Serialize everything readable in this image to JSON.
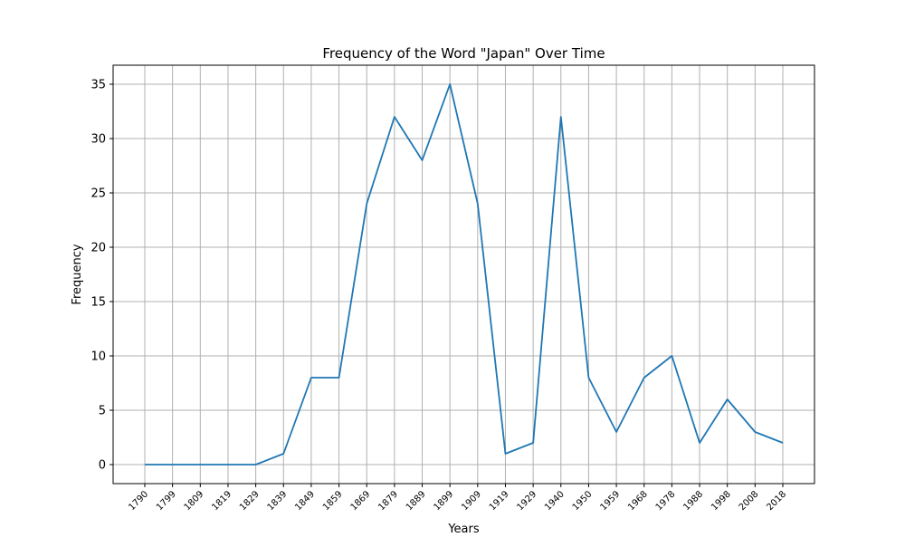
{
  "chart_data": {
    "type": "line",
    "title": "Frequency of the Word \"Japan\" Over Time",
    "xlabel": "Years",
    "ylabel": "Frequency",
    "categories": [
      "1790",
      "1799",
      "1809",
      "1819",
      "1829",
      "1839",
      "1849",
      "1859",
      "1869",
      "1879",
      "1889",
      "1899",
      "1909",
      "1919",
      "1929",
      "1940",
      "1950",
      "1959",
      "1968",
      "1978",
      "1988",
      "1998",
      "2008",
      "2018"
    ],
    "values": [
      0,
      0,
      0,
      0,
      0,
      1,
      8,
      8,
      24,
      32,
      28,
      35,
      24,
      1,
      2,
      32,
      8,
      3,
      8,
      10,
      2,
      6,
      3,
      2
    ],
    "ylim": [
      -1.75,
      36.75
    ],
    "yticks": [
      0,
      5,
      10,
      15,
      20,
      25,
      30,
      35
    ],
    "grid": true,
    "line_color": "#1f77b4"
  }
}
